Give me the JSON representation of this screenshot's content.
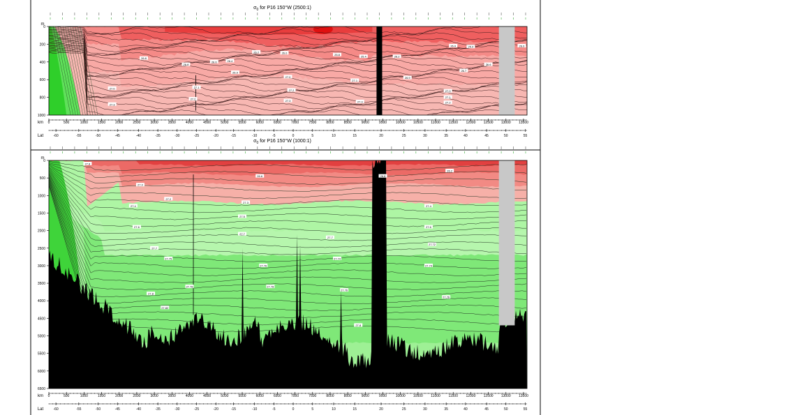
{
  "chart_data": [
    {
      "type": "heatmap",
      "title_sym": "σ",
      "title_sub": "0",
      "title_rest": " for P16 150°W (2500:1)",
      "ylabel": "m",
      "ylim": [
        1000,
        0
      ],
      "y_ticks": [
        0,
        200,
        400,
        600,
        800,
        1000
      ],
      "xlabel": "km",
      "xlim": [
        0,
        13600
      ],
      "x_ticks": [
        0,
        500,
        1000,
        1500,
        2000,
        2500,
        3000,
        3500,
        4000,
        4500,
        5000,
        5500,
        6000,
        6500,
        7000,
        7500,
        8000,
        8500,
        9000,
        9500,
        10000,
        10500,
        11000,
        11500,
        12000,
        12500,
        13000,
        13500
      ],
      "lat_label": "Lat",
      "lat_ticks": [
        [
          -60,
          200
        ],
        [
          -55,
          850
        ],
        [
          -50,
          1400
        ],
        [
          -45,
          1950
        ],
        [
          -40,
          2550
        ],
        [
          -35,
          3100
        ],
        [
          -30,
          3650
        ],
        [
          -25,
          4200
        ],
        [
          -20,
          4750
        ],
        [
          -15,
          5250
        ],
        [
          -10,
          5850
        ],
        [
          -5,
          6400
        ],
        [
          0,
          6950
        ],
        [
          5,
          7500
        ],
        [
          10,
          8100
        ],
        [
          15,
          8700
        ],
        [
          20,
          9450
        ],
        [
          25,
          10100
        ],
        [
          30,
          10700
        ],
        [
          35,
          11300
        ],
        [
          40,
          11850
        ],
        [
          45,
          12450
        ],
        [
          50,
          13000
        ],
        [
          55,
          13550
        ]
      ],
      "contour_levels": [
        26.0,
        26.4,
        26.8,
        27.0,
        27.1,
        27.2,
        27.3
      ],
      "contour_labels": [
        {
          "x": 2700,
          "y": 360,
          "text": "26.8"
        },
        {
          "x": 3900,
          "y": 430,
          "text": "26.8"
        },
        {
          "x": 4700,
          "y": 400,
          "text": "26.6"
        },
        {
          "x": 5150,
          "y": 390,
          "text": "26.4"
        },
        {
          "x": 5900,
          "y": 290,
          "text": "26.2"
        },
        {
          "x": 6700,
          "y": 300,
          "text": "26.0"
        },
        {
          "x": 8200,
          "y": 320,
          "text": "25.8"
        },
        {
          "x": 8950,
          "y": 340,
          "text": "25.4"
        },
        {
          "x": 9900,
          "y": 340,
          "text": "26.2"
        },
        {
          "x": 11500,
          "y": 220,
          "text": "26.0"
        },
        {
          "x": 12000,
          "y": 230,
          "text": "25.4"
        },
        {
          "x": 13450,
          "y": 220,
          "text": "26.0"
        },
        {
          "x": 5300,
          "y": 520,
          "text": "26.9"
        },
        {
          "x": 6800,
          "y": 570,
          "text": "27.0"
        },
        {
          "x": 8700,
          "y": 610,
          "text": "27.1"
        },
        {
          "x": 1800,
          "y": 700,
          "text": "27.0"
        },
        {
          "x": 4200,
          "y": 690,
          "text": "27.1"
        },
        {
          "x": 6900,
          "y": 720,
          "text": "27.2"
        },
        {
          "x": 4100,
          "y": 820,
          "text": "27.2"
        },
        {
          "x": 6800,
          "y": 840,
          "text": "27.3"
        },
        {
          "x": 8850,
          "y": 850,
          "text": "27.3"
        },
        {
          "x": 1800,
          "y": 880,
          "text": "27.3"
        },
        {
          "x": 11350,
          "y": 730,
          "text": "27.0"
        },
        {
          "x": 11350,
          "y": 800,
          "text": "27.1"
        },
        {
          "x": 11350,
          "y": 860,
          "text": "27.2"
        },
        {
          "x": 10200,
          "y": 580,
          "text": "26.9"
        },
        {
          "x": 11800,
          "y": 500,
          "text": "26.7"
        },
        {
          "x": 12500,
          "y": 430,
          "text": "26.6"
        }
      ]
    },
    {
      "type": "heatmap",
      "title_sym": "σ",
      "title_sub": "0",
      "title_rest": " for P16 150°W (1000:1)",
      "ylabel": "m",
      "ylim": [
        6500,
        0
      ],
      "y_ticks": [
        0,
        500,
        1000,
        1500,
        2000,
        2500,
        3000,
        3500,
        4000,
        4500,
        5000,
        5500,
        6000,
        6500
      ],
      "xlabel": "km",
      "xlim": [
        0,
        13600
      ],
      "x_ticks": [
        0,
        500,
        1000,
        1500,
        2000,
        2500,
        3000,
        3500,
        4000,
        4500,
        5000,
        5500,
        6000,
        6500,
        7000,
        7500,
        8000,
        8500,
        9000,
        9500,
        10000,
        10500,
        11000,
        11500,
        12000,
        12500,
        13000,
        13500
      ],
      "lat_label": "Lat",
      "lat_ticks": [
        [
          -60,
          200
        ],
        [
          -55,
          850
        ],
        [
          -50,
          1400
        ],
        [
          -45,
          1950
        ],
        [
          -40,
          2550
        ],
        [
          -35,
          3100
        ],
        [
          -30,
          3650
        ],
        [
          -25,
          4200
        ],
        [
          -20,
          4750
        ],
        [
          -15,
          5250
        ],
        [
          -10,
          5850
        ],
        [
          -5,
          6400
        ],
        [
          0,
          6950
        ],
        [
          5,
          7500
        ],
        [
          10,
          8100
        ],
        [
          15,
          8700
        ],
        [
          20,
          9450
        ],
        [
          25,
          10100
        ],
        [
          30,
          10700
        ],
        [
          35,
          11300
        ],
        [
          40,
          11850
        ],
        [
          45,
          12450
        ],
        [
          50,
          13000
        ],
        [
          55,
          13550
        ]
      ],
      "contour_labels": [
        {
          "x": 2600,
          "y": 700,
          "text": "27.0"
        },
        {
          "x": 3400,
          "y": 1100,
          "text": "27.2"
        },
        {
          "x": 2400,
          "y": 1300,
          "text": "27.4"
        },
        {
          "x": 2500,
          "y": 1900,
          "text": "27.6"
        },
        {
          "x": 3000,
          "y": 2500,
          "text": "27.7"
        },
        {
          "x": 3400,
          "y": 2800,
          "text": "27.75"
        },
        {
          "x": 2900,
          "y": 3800,
          "text": "27.8"
        },
        {
          "x": 3300,
          "y": 4200,
          "text": "27.82"
        },
        {
          "x": 4000,
          "y": 3600,
          "text": "27.78"
        },
        {
          "x": 5600,
          "y": 1200,
          "text": "27.3"
        },
        {
          "x": 5500,
          "y": 1600,
          "text": "27.5"
        },
        {
          "x": 5500,
          "y": 2100,
          "text": "27.7"
        },
        {
          "x": 6100,
          "y": 3000,
          "text": "27.76"
        },
        {
          "x": 6300,
          "y": 3600,
          "text": "27.78"
        },
        {
          "x": 8000,
          "y": 2200,
          "text": "27.7"
        },
        {
          "x": 8200,
          "y": 2800,
          "text": "27.74"
        },
        {
          "x": 8400,
          "y": 3700,
          "text": "27.76"
        },
        {
          "x": 8800,
          "y": 4700,
          "text": "27.8"
        },
        {
          "x": 10800,
          "y": 1300,
          "text": "27.4"
        },
        {
          "x": 10800,
          "y": 1900,
          "text": "27.6"
        },
        {
          "x": 10900,
          "y": 2400,
          "text": "27.72"
        },
        {
          "x": 10800,
          "y": 3000,
          "text": "27.74"
        },
        {
          "x": 11300,
          "y": 3900,
          "text": "27.76"
        },
        {
          "x": 9500,
          "y": 450,
          "text": "26.8"
        },
        {
          "x": 6000,
          "y": 450,
          "text": "26.6"
        },
        {
          "x": 11400,
          "y": 300,
          "text": "26.2"
        },
        {
          "x": 1100,
          "y": 100,
          "text": "27.8"
        }
      ]
    }
  ]
}
